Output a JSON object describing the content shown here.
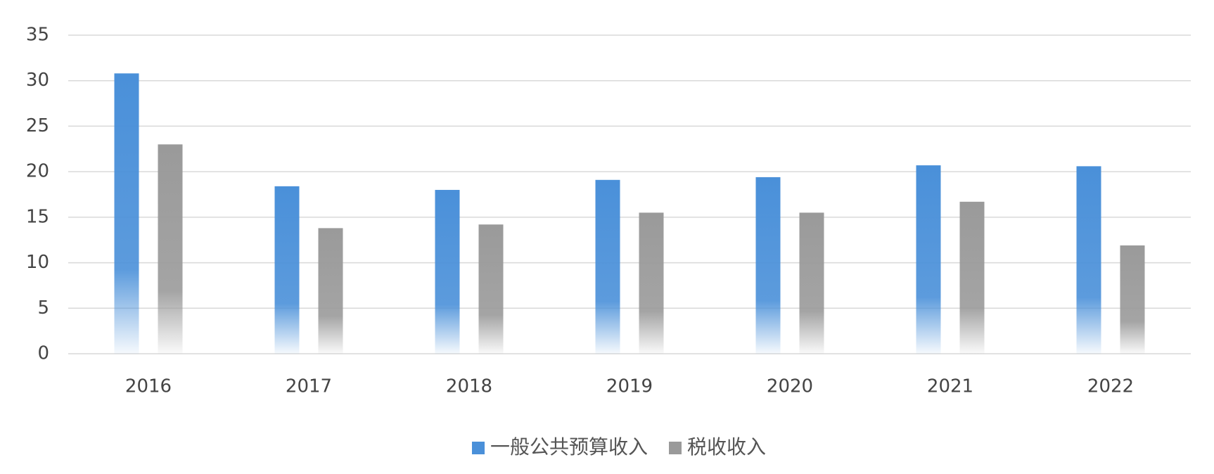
{
  "chart_data": {
    "type": "bar",
    "categories": [
      "2016",
      "2017",
      "2018",
      "2019",
      "2020",
      "2021",
      "2022"
    ],
    "series": [
      {
        "name": "一般公共预算收入",
        "color": "#4a90d9",
        "values": [
          30.8,
          18.4,
          18.0,
          19.1,
          19.4,
          20.7,
          20.6
        ]
      },
      {
        "name": "税收收入",
        "color": "#9a9a9a",
        "values": [
          23.0,
          13.8,
          14.2,
          15.5,
          15.5,
          16.7,
          11.9
        ]
      }
    ],
    "ylim": [
      0,
      35
    ],
    "yticks": [
      0,
      5,
      10,
      15,
      20,
      25,
      30,
      35
    ],
    "grid": true,
    "legend": "bottom"
  }
}
